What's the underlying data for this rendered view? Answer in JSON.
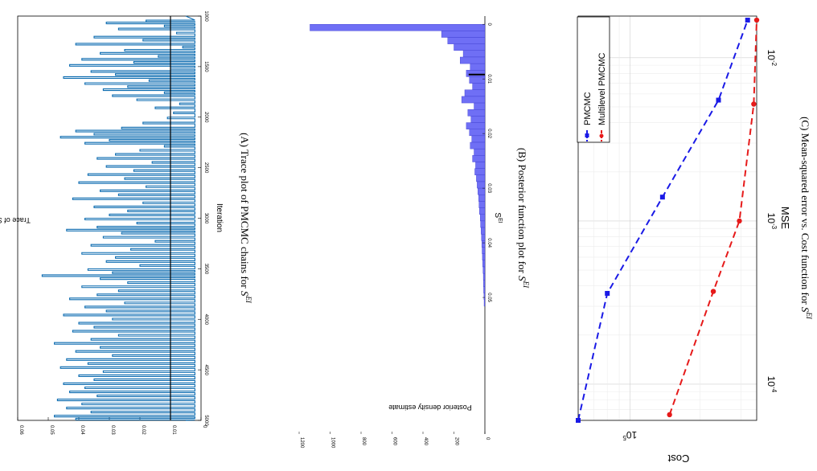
{
  "figure": {
    "captions": [
      {
        "label": "(A)",
        "text": "Trace plot of PMCMC chains for",
        "symbol": "S",
        "sup": "EI"
      },
      {
        "label": "(B)",
        "text": "Posterior function plot for",
        "symbol": "S",
        "sup": "EI"
      },
      {
        "label": "(C)",
        "text": "Mean-squared error vs. Cost function for",
        "symbol": "S",
        "sup": "EI"
      }
    ]
  },
  "chart_data": [
    {
      "type": "line",
      "xlabel": "Iteration",
      "ylabel": "Trace of S",
      "ylabel_sub": "EI",
      "xlim": [
        1000,
        5000
      ],
      "ylim": [
        0,
        0.06
      ],
      "xticks": [
        1000,
        1500,
        2000,
        2500,
        3000,
        3500,
        4000,
        4500,
        5000
      ],
      "yticks": [
        0,
        0.01,
        0.02,
        0.03,
        0.04,
        0.05,
        0.06
      ],
      "ytick_labels": [
        "0",
        "0.01",
        "0.02",
        "0.03",
        "0.04",
        "0.05",
        "0.06"
      ],
      "reference_line": 0.01,
      "color": "#0b6bb0",
      "spikes": [
        [
          1040,
          0.018
        ],
        [
          1060,
          0.031
        ],
        [
          1090,
          0.012
        ],
        [
          1120,
          0.027
        ],
        [
          1160,
          0.008
        ],
        [
          1200,
          0.035
        ],
        [
          1230,
          0.019
        ],
        [
          1270,
          0.041
        ],
        [
          1300,
          0.006
        ],
        [
          1330,
          0.025
        ],
        [
          1360,
          0.033
        ],
        [
          1390,
          0.014
        ],
        [
          1420,
          0.039
        ],
        [
          1450,
          0.022
        ],
        [
          1480,
          0.043
        ],
        [
          1510,
          0.01
        ],
        [
          1540,
          0.036
        ],
        [
          1570,
          0.028
        ],
        [
          1600,
          0.045
        ],
        [
          1630,
          0.017
        ],
        [
          1660,
          0.038
        ],
        [
          1690,
          0.024
        ],
        [
          1720,
          0.032
        ],
        [
          1750,
          0.012
        ],
        [
          1780,
          0.029
        ],
        [
          1820,
          0.021
        ],
        [
          1860,
          0.007
        ],
        [
          1900,
          0.015
        ],
        [
          1950,
          0.009
        ],
        [
          2000,
          0.011
        ],
        [
          2050,
          0.019
        ],
        [
          2100,
          0.026
        ],
        [
          2130,
          0.041
        ],
        [
          2160,
          0.035
        ],
        [
          2190,
          0.046
        ],
        [
          2220,
          0.03
        ],
        [
          2250,
          0.038
        ],
        [
          2280,
          0.012
        ],
        [
          2320,
          0.02
        ],
        [
          2360,
          0.028
        ],
        [
          2400,
          0.034
        ],
        [
          2440,
          0.016
        ],
        [
          2480,
          0.031
        ],
        [
          2520,
          0.022
        ],
        [
          2560,
          0.037
        ],
        [
          2600,
          0.025
        ],
        [
          2640,
          0.04
        ],
        [
          2680,
          0.018
        ],
        [
          2720,
          0.033
        ],
        [
          2760,
          0.027
        ],
        [
          2800,
          0.042
        ],
        [
          2840,
          0.019
        ],
        [
          2880,
          0.035
        ],
        [
          2920,
          0.024
        ],
        [
          2960,
          0.03
        ],
        [
          3000,
          0.038
        ],
        [
          3040,
          0.021
        ],
        [
          3080,
          0.034
        ],
        [
          3110,
          0.044
        ],
        [
          3140,
          0.026
        ],
        [
          3180,
          0.032
        ],
        [
          3220,
          0.015
        ],
        [
          3260,
          0.036
        ],
        [
          3300,
          0.023
        ],
        [
          3340,
          0.039
        ],
        [
          3380,
          0.028
        ],
        [
          3420,
          0.031
        ],
        [
          3460,
          0.02
        ],
        [
          3500,
          0.037
        ],
        [
          3530,
          0.029
        ],
        [
          3560,
          0.052
        ],
        [
          3590,
          0.033
        ],
        [
          3630,
          0.024
        ],
        [
          3670,
          0.039
        ],
        [
          3710,
          0.027
        ],
        [
          3750,
          0.034
        ],
        [
          3790,
          0.043
        ],
        [
          3830,
          0.025
        ],
        [
          3870,
          0.038
        ],
        [
          3910,
          0.031
        ],
        [
          3950,
          0.045
        ],
        [
          3990,
          0.029
        ],
        [
          4030,
          0.04
        ],
        [
          4070,
          0.035
        ],
        [
          4110,
          0.042
        ],
        [
          4150,
          0.027
        ],
        [
          4190,
          0.036
        ],
        [
          4230,
          0.048
        ],
        [
          4270,
          0.033
        ],
        [
          4310,
          0.041
        ],
        [
          4350,
          0.029
        ],
        [
          4390,
          0.044
        ],
        [
          4430,
          0.037
        ],
        [
          4470,
          0.046
        ],
        [
          4510,
          0.032
        ],
        [
          4550,
          0.04
        ],
        [
          4590,
          0.035
        ],
        [
          4630,
          0.045
        ],
        [
          4670,
          0.038
        ],
        [
          4710,
          0.043
        ],
        [
          4750,
          0.034
        ],
        [
          4790,
          0.047
        ],
        [
          4830,
          0.039
        ],
        [
          4870,
          0.044
        ],
        [
          4910,
          0.036
        ],
        [
          4950,
          0.048
        ],
        [
          4980,
          0.041
        ]
      ]
    },
    {
      "type": "bar",
      "xlabel": "S",
      "xlabel_sup": "EI",
      "ylabel": "Posterior density estimate",
      "xlim": [
        -0.0015,
        0.075
      ],
      "ylim": [
        0,
        1200
      ],
      "xticks": [
        0,
        0.01,
        0.02,
        0.03,
        0.04,
        0.05
      ],
      "xtick_labels": [
        "0",
        "0.01",
        "0.02",
        "0.03",
        "0.04",
        "0.05"
      ],
      "yticks": [
        0,
        200,
        400,
        600,
        800,
        1000,
        1200
      ],
      "bin_width": 0.0012,
      "bin_start": 0,
      "values": [
        1130,
        280,
        240,
        200,
        140,
        160,
        95,
        120,
        100,
        80,
        130,
        150,
        70,
        110,
        90,
        120,
        100,
        85,
        95,
        70,
        80,
        60,
        65,
        55,
        50,
        45,
        40,
        38,
        35,
        30,
        28,
        25,
        22,
        20,
        18,
        16,
        14,
        12,
        10,
        9,
        8,
        6,
        5
      ],
      "mean_marker": 0.0092,
      "color": "#6f6ff5"
    },
    {
      "type": "line",
      "xlabel": "MSE",
      "ylabel": "Cost",
      "xscale": "log",
      "yscale": "log",
      "xlim": [
        6e-05,
        0.018
      ],
      "ylim": [
        60000,
        350000
      ],
      "xticks": [
        0.0001,
        0.001,
        0.01
      ],
      "xtick_labels": [
        "10",
        "10",
        "10"
      ],
      "xtick_exponents": [
        "-4",
        "-3",
        "-2"
      ],
      "yticks": [
        100000
      ],
      "ytick_labels": [
        "10"
      ],
      "ytick_exponents": [
        "5"
      ],
      "legend_position": "top-left",
      "series": [
        {
          "name": "PMCMC",
          "color": "#1a1ae6",
          "marker": "square",
          "x": [
            6e-05,
            0.00036,
            0.0014,
            0.0055,
            0.017
          ],
          "y": [
            60000,
            80000,
            138000,
            240000,
            320000
          ]
        },
        {
          "name": "Multilevel PMCMC",
          "color": "#e61a1a",
          "marker": "circle",
          "x": [
            6.5e-05,
            0.00037,
            0.001,
            0.0052,
            0.017
          ],
          "y": [
            148000,
            228000,
            295000,
            340000,
            350000
          ]
        }
      ]
    }
  ]
}
